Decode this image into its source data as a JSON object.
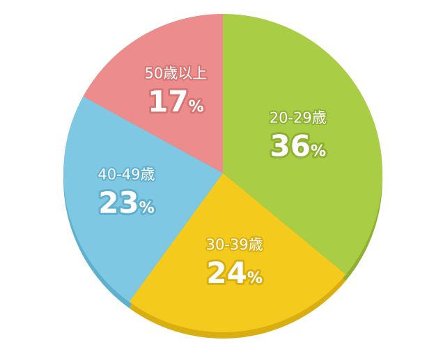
{
  "chart_data": {
    "type": "pie",
    "title": "",
    "slices": [
      {
        "category": "20-29歳",
        "value": 36,
        "percent_text": "36",
        "color": "#a9cd45",
        "shade": "#8fb033"
      },
      {
        "category": "30-39歳",
        "value": 24,
        "percent_text": "24",
        "color": "#f4ca1c",
        "shade": "#d9ae10"
      },
      {
        "category": "40-49歳",
        "value": 23,
        "percent_text": "23",
        "color": "#7ec8e3",
        "shade": "#5fb0cf"
      },
      {
        "category": "50歳以上",
        "value": 17,
        "percent_text": "17",
        "color": "#ec8c8c",
        "shade": "#d77474"
      }
    ],
    "unit": "%",
    "start_angle_deg": 0,
    "direction": "clockwise",
    "legend": "none"
  }
}
